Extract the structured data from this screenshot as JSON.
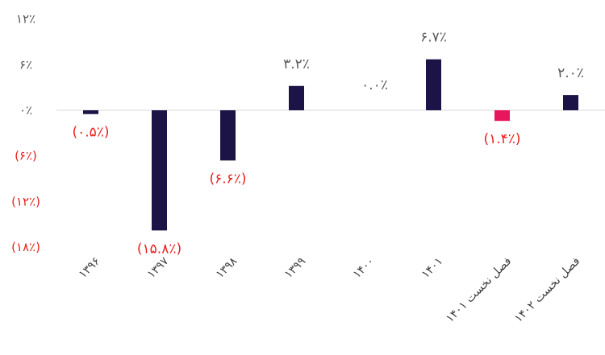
{
  "chart_data": {
    "type": "bar",
    "title": "",
    "xlabel": "",
    "ylabel": "",
    "categories": [
      "۱۳۹۶",
      "۱۳۹۷",
      "۱۳۹۸",
      "۱۳۹۹",
      "۱۴۰۰",
      "۱۴۰۱",
      "فصل نخست ۱۴۰۱",
      "فصل نخست ۱۴۰۲"
    ],
    "values": [
      -0.5,
      -15.8,
      -6.6,
      3.2,
      0.0,
      6.7,
      -1.4,
      2.0
    ],
    "data_labels": [
      "(۰.۵٪)",
      "(۱۵.۸٪)",
      "(۶.۶٪)",
      "۳.۲٪",
      "۰.۰٪",
      "۶.۷٪",
      "(۱.۴٪)",
      "۲.۰٪"
    ],
    "ylim": [
      -18,
      12
    ],
    "yticks": [
      12,
      6,
      0,
      -6,
      -12,
      -18
    ],
    "ytick_labels": [
      "۱۲٪",
      "۶٪",
      "۰٪",
      "(۶٪)",
      "(۱۲٪)",
      "(۱۸٪)"
    ],
    "grid": false,
    "legend": "none",
    "colors": {
      "default_bar": "#1c1446",
      "highlight_bar": "#e8175d",
      "negative_text": "#e8211e",
      "positive_text": "#595959",
      "baseline": "#d9d9d9"
    }
  }
}
